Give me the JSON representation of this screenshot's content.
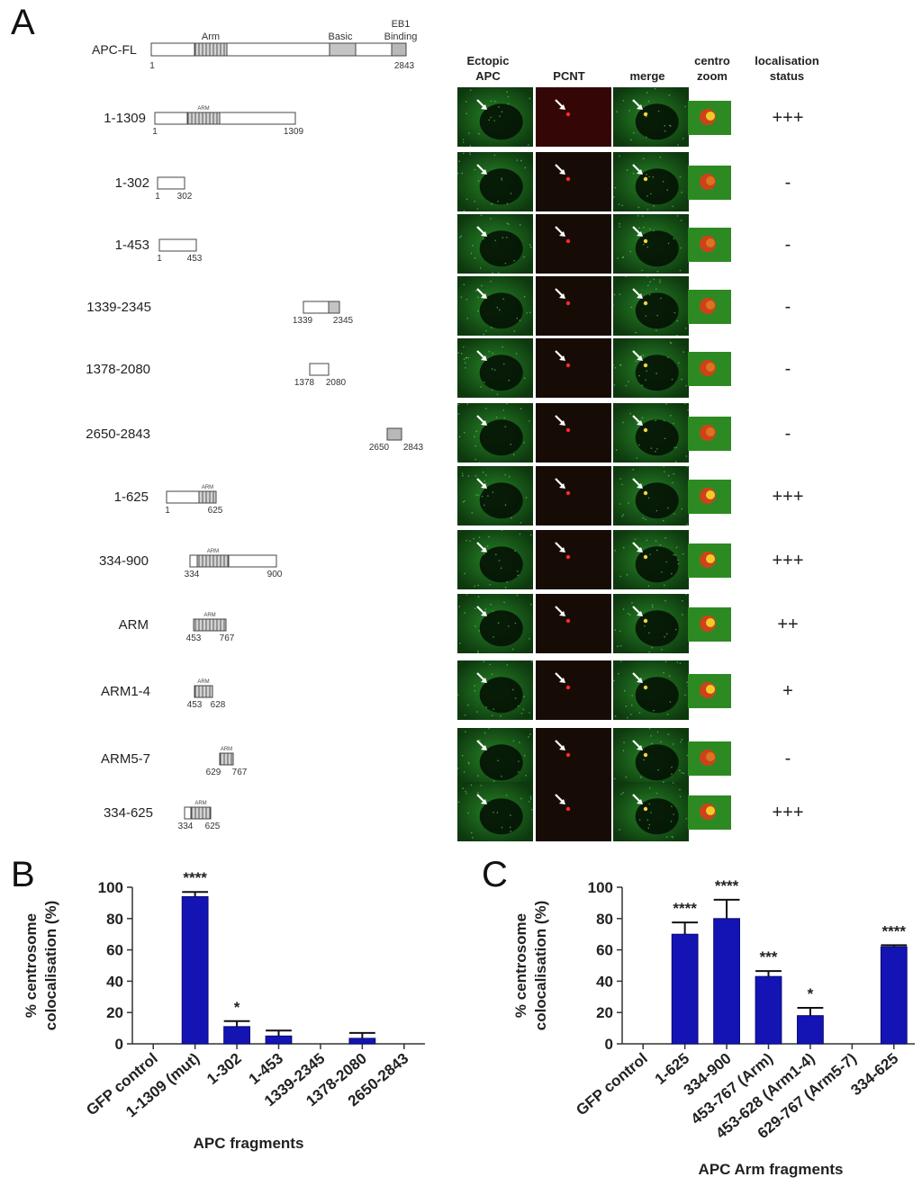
{
  "panel_labels": {
    "a": "A",
    "b": "B",
    "c": "C"
  },
  "full_length": {
    "name": "APC-FL",
    "start": "1",
    "end": "2843",
    "domain_arm": "Arm",
    "domain_basic": "Basic",
    "domain_eb1_line1": "EB1",
    "domain_eb1_line2": "Binding"
  },
  "column_headers": {
    "ectopic_1": "Ectopic",
    "ectopic_2": "APC",
    "pcnt": "PCNT",
    "merge": "merge",
    "zoom_1": "centro",
    "zoom_2": "zoom",
    "status_1": "localisation",
    "status_2": "status"
  },
  "arm_tag": "ARM",
  "constructs": [
    {
      "label": "1-1309",
      "n1": "1",
      "n2": "1309",
      "status": "+++"
    },
    {
      "label": "1-302",
      "n1": "1",
      "n2": "302",
      "status": "-"
    },
    {
      "label": "1-453",
      "n1": "1",
      "n2": "453",
      "status": "-"
    },
    {
      "label": "1339-2345",
      "n1": "1339",
      "n2": "2345",
      "status": "-"
    },
    {
      "label": "1378-2080",
      "n1": "1378",
      "n2": "2080",
      "status": "-"
    },
    {
      "label": "2650-2843",
      "n1": "2650",
      "n2": "2843",
      "status": "-"
    },
    {
      "label": "1-625",
      "n1": "1",
      "n2": "625",
      "status": "+++"
    },
    {
      "label": "334-900",
      "n1": "334",
      "n2": "900",
      "status": "+++"
    },
    {
      "label": "ARM",
      "n1": "453",
      "n2": "767",
      "status": "++"
    },
    {
      "label": "ARM1-4",
      "n1": "453",
      "n2": "628",
      "status": "+"
    },
    {
      "label": "ARM5-7",
      "n1": "629",
      "n2": "767",
      "status": "-"
    },
    {
      "label": "334-625",
      "n1": "334",
      "n2": "625",
      "status": "+++"
    }
  ],
  "colors": {
    "bar": "#1414b4",
    "micro_bg": "#061006",
    "cytoplasm": "#1f7a1f",
    "pcnt": "#ff2a2a",
    "arrow": "#ffffff"
  },
  "chart_data": [
    {
      "type": "bar",
      "panel": "B",
      "categories": [
        "GFP control",
        "1-1309 (mut)",
        "1-302",
        "1-453",
        "1339-2345",
        "1378-2080",
        "2650-2843"
      ],
      "values": [
        0,
        94,
        11,
        5,
        0,
        3.5,
        0
      ],
      "errors": [
        0,
        3,
        3.5,
        3.5,
        0,
        3.5,
        0
      ],
      "significance": [
        "",
        "****",
        "*",
        "",
        "",
        "",
        ""
      ],
      "xlabel": "APC fragments",
      "ylabel_line1": "% centrosome",
      "ylabel_line2": "colocalisation (%)",
      "ylim": [
        0,
        100
      ],
      "yticks": [
        0,
        20,
        40,
        60,
        80,
        100
      ],
      "grid": false
    },
    {
      "type": "bar",
      "panel": "C",
      "categories": [
        "GFP control",
        "1-625",
        "334-900",
        "453-767 (Arm)",
        "453-628 (Arm1-4)",
        "629-767 (Arm5-7)",
        "334-625"
      ],
      "values": [
        0,
        70,
        80,
        43,
        18,
        0,
        62
      ],
      "errors": [
        0,
        7.5,
        12,
        3.5,
        5,
        0,
        1
      ],
      "significance": [
        "",
        "****",
        "****",
        "***",
        "*",
        "",
        "****"
      ],
      "xlabel": "APC Arm fragments",
      "ylabel_line1": "% centrosome",
      "ylabel_line2": "colocalisation (%)",
      "ylim": [
        0,
        100
      ],
      "yticks": [
        0,
        20,
        40,
        60,
        80,
        100
      ],
      "grid": false
    }
  ]
}
